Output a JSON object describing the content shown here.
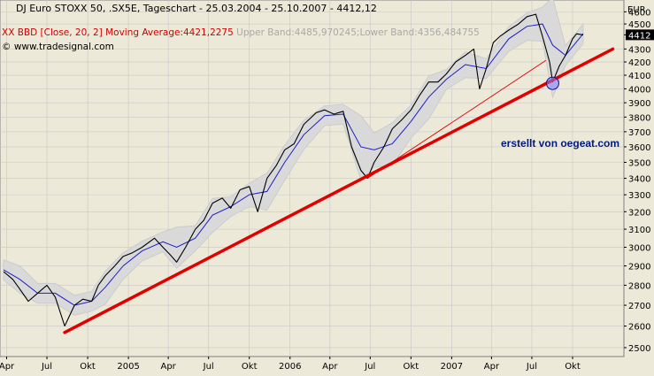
{
  "header": {
    "title": "DJ Euro STOXX 50, .SX5E, Tageschart - 25.03.2004 - 25.10.2007 - 4412,12",
    "indicator_main": "XX BBD [Close, 20, 2] Moving Average:4421,2275",
    "indicator_bands": " Upper Band:4485,970245;Lower Band:4356,484755",
    "credit": "www.tradesignal.com",
    "currency": "EUR"
  },
  "annotation": "erstellt von oegeat.com",
  "colors": {
    "background": "#ece9d8",
    "price": "#000000",
    "moving_average": "#1e1ec8",
    "bands": "#c8c8c8",
    "trendline": "#e00000",
    "title_indicator": "#d00000",
    "annotation": "#001a80"
  },
  "chart_data": {
    "type": "line",
    "xlim": [
      "2004-03-25",
      "2007-10-25"
    ],
    "ylim": [
      2460,
      4700
    ],
    "y_scale": "log",
    "grid": true,
    "y_ticks": [
      2500,
      2600,
      2700,
      2800,
      2900,
      3000,
      3100,
      3200,
      3300,
      3400,
      3500,
      3600,
      3700,
      3800,
      3900,
      4000,
      4100,
      4200,
      4300,
      4412,
      4500,
      4600
    ],
    "y_tick_highlight": 4412,
    "x_ticks": [
      {
        "date": "2004-04-01",
        "label": "Apr"
      },
      {
        "date": "2004-07-01",
        "label": "Jul"
      },
      {
        "date": "2004-10-01",
        "label": "Okt"
      },
      {
        "date": "2005-01-01",
        "label": "2005"
      },
      {
        "date": "2005-04-01",
        "label": "Apr"
      },
      {
        "date": "2005-07-01",
        "label": "Jul"
      },
      {
        "date": "2005-10-01",
        "label": "Okt"
      },
      {
        "date": "2006-01-01",
        "label": "2006"
      },
      {
        "date": "2006-04-01",
        "label": "Apr"
      },
      {
        "date": "2006-07-01",
        "label": "Jul"
      },
      {
        "date": "2006-10-01",
        "label": "Okt"
      },
      {
        "date": "2007-01-01",
        "label": "2007"
      },
      {
        "date": "2007-04-01",
        "label": "Apr"
      },
      {
        "date": "2007-07-01",
        "label": "Jul"
      },
      {
        "date": "2007-10-01",
        "label": "Okt"
      }
    ],
    "series": [
      {
        "kind": "close",
        "x": [
          "2004-03-25",
          "2004-04-15",
          "2004-05-01",
          "2004-05-20",
          "2004-06-10",
          "2004-07-01",
          "2004-07-20",
          "2004-08-10",
          "2004-09-01",
          "2004-09-20",
          "2004-10-10",
          "2004-10-25",
          "2004-11-10",
          "2004-12-01",
          "2004-12-20",
          "2005-01-10",
          "2005-02-01",
          "2005-03-01",
          "2005-03-20",
          "2005-04-05",
          "2005-04-20",
          "2005-05-10",
          "2005-06-01",
          "2005-06-20",
          "2005-07-10",
          "2005-08-01",
          "2005-08-20",
          "2005-09-10",
          "2005-10-01",
          "2005-10-20",
          "2005-11-10",
          "2005-12-01",
          "2005-12-20",
          "2006-01-10",
          "2006-02-01",
          "2006-03-01",
          "2006-03-20",
          "2006-04-10",
          "2006-05-01",
          "2006-05-20",
          "2006-06-10",
          "2006-06-25",
          "2006-07-10",
          "2006-08-01",
          "2006-08-20",
          "2006-09-10",
          "2006-10-01",
          "2006-10-20",
          "2006-11-10",
          "2006-12-01",
          "2006-12-20",
          "2007-01-10",
          "2007-02-01",
          "2007-02-20",
          "2007-03-05",
          "2007-03-20",
          "2007-04-05",
          "2007-04-20",
          "2007-05-10",
          "2007-06-01",
          "2007-06-20",
          "2007-07-10",
          "2007-07-25",
          "2007-08-10",
          "2007-08-17",
          "2007-09-01",
          "2007-09-15",
          "2007-10-01",
          "2007-10-10",
          "2007-10-25"
        ],
        "values": [
          2870,
          2830,
          2780,
          2720,
          2760,
          2800,
          2740,
          2600,
          2700,
          2730,
          2720,
          2800,
          2850,
          2900,
          2950,
          2970,
          3000,
          3050,
          3000,
          2960,
          2920,
          3000,
          3100,
          3150,
          3250,
          3280,
          3220,
          3330,
          3350,
          3200,
          3400,
          3480,
          3580,
          3620,
          3750,
          3830,
          3850,
          3820,
          3840,
          3600,
          3450,
          3400,
          3500,
          3600,
          3720,
          3780,
          3850,
          3950,
          4050,
          4050,
          4110,
          4200,
          4250,
          4300,
          4000,
          4150,
          4350,
          4400,
          4450,
          4500,
          4560,
          4580,
          4400,
          4200,
          4050,
          4170,
          4250,
          4380,
          4420,
          4412
        ]
      },
      {
        "kind": "moving_average",
        "x": [
          "2004-03-25",
          "2004-05-01",
          "2004-06-10",
          "2004-07-20",
          "2004-09-01",
          "2004-10-10",
          "2004-11-10",
          "2004-12-20",
          "2005-02-01",
          "2005-03-20",
          "2005-04-20",
          "2005-06-01",
          "2005-07-10",
          "2005-08-20",
          "2005-10-01",
          "2005-11-10",
          "2005-12-20",
          "2006-02-01",
          "2006-03-20",
          "2006-05-01",
          "2006-06-10",
          "2006-07-10",
          "2006-08-20",
          "2006-10-01",
          "2006-11-10",
          "2006-12-20",
          "2007-02-01",
          "2007-03-20",
          "2007-05-10",
          "2007-06-20",
          "2007-07-25",
          "2007-08-17",
          "2007-09-15",
          "2007-10-25"
        ],
        "values": [
          2880,
          2830,
          2760,
          2760,
          2700,
          2720,
          2790,
          2900,
          2980,
          3030,
          3000,
          3050,
          3180,
          3230,
          3300,
          3320,
          3500,
          3680,
          3810,
          3820,
          3600,
          3580,
          3620,
          3770,
          3940,
          4070,
          4180,
          4150,
          4380,
          4480,
          4500,
          4330,
          4250,
          4421
        ]
      }
    ],
    "trendlines": [
      {
        "from": {
          "x": "2004-08-10",
          "y": 2570
        },
        "to": {
          "x": "2007-12-31",
          "y": 4300
        },
        "style": "thick"
      },
      {
        "from": {
          "x": "2006-06-25",
          "y": 3400
        },
        "to": {
          "x": "2007-08-01",
          "y": 4210
        },
        "style": "thin"
      }
    ],
    "marker": {
      "x": "2007-08-17",
      "y": 4040,
      "shape": "circle"
    }
  }
}
